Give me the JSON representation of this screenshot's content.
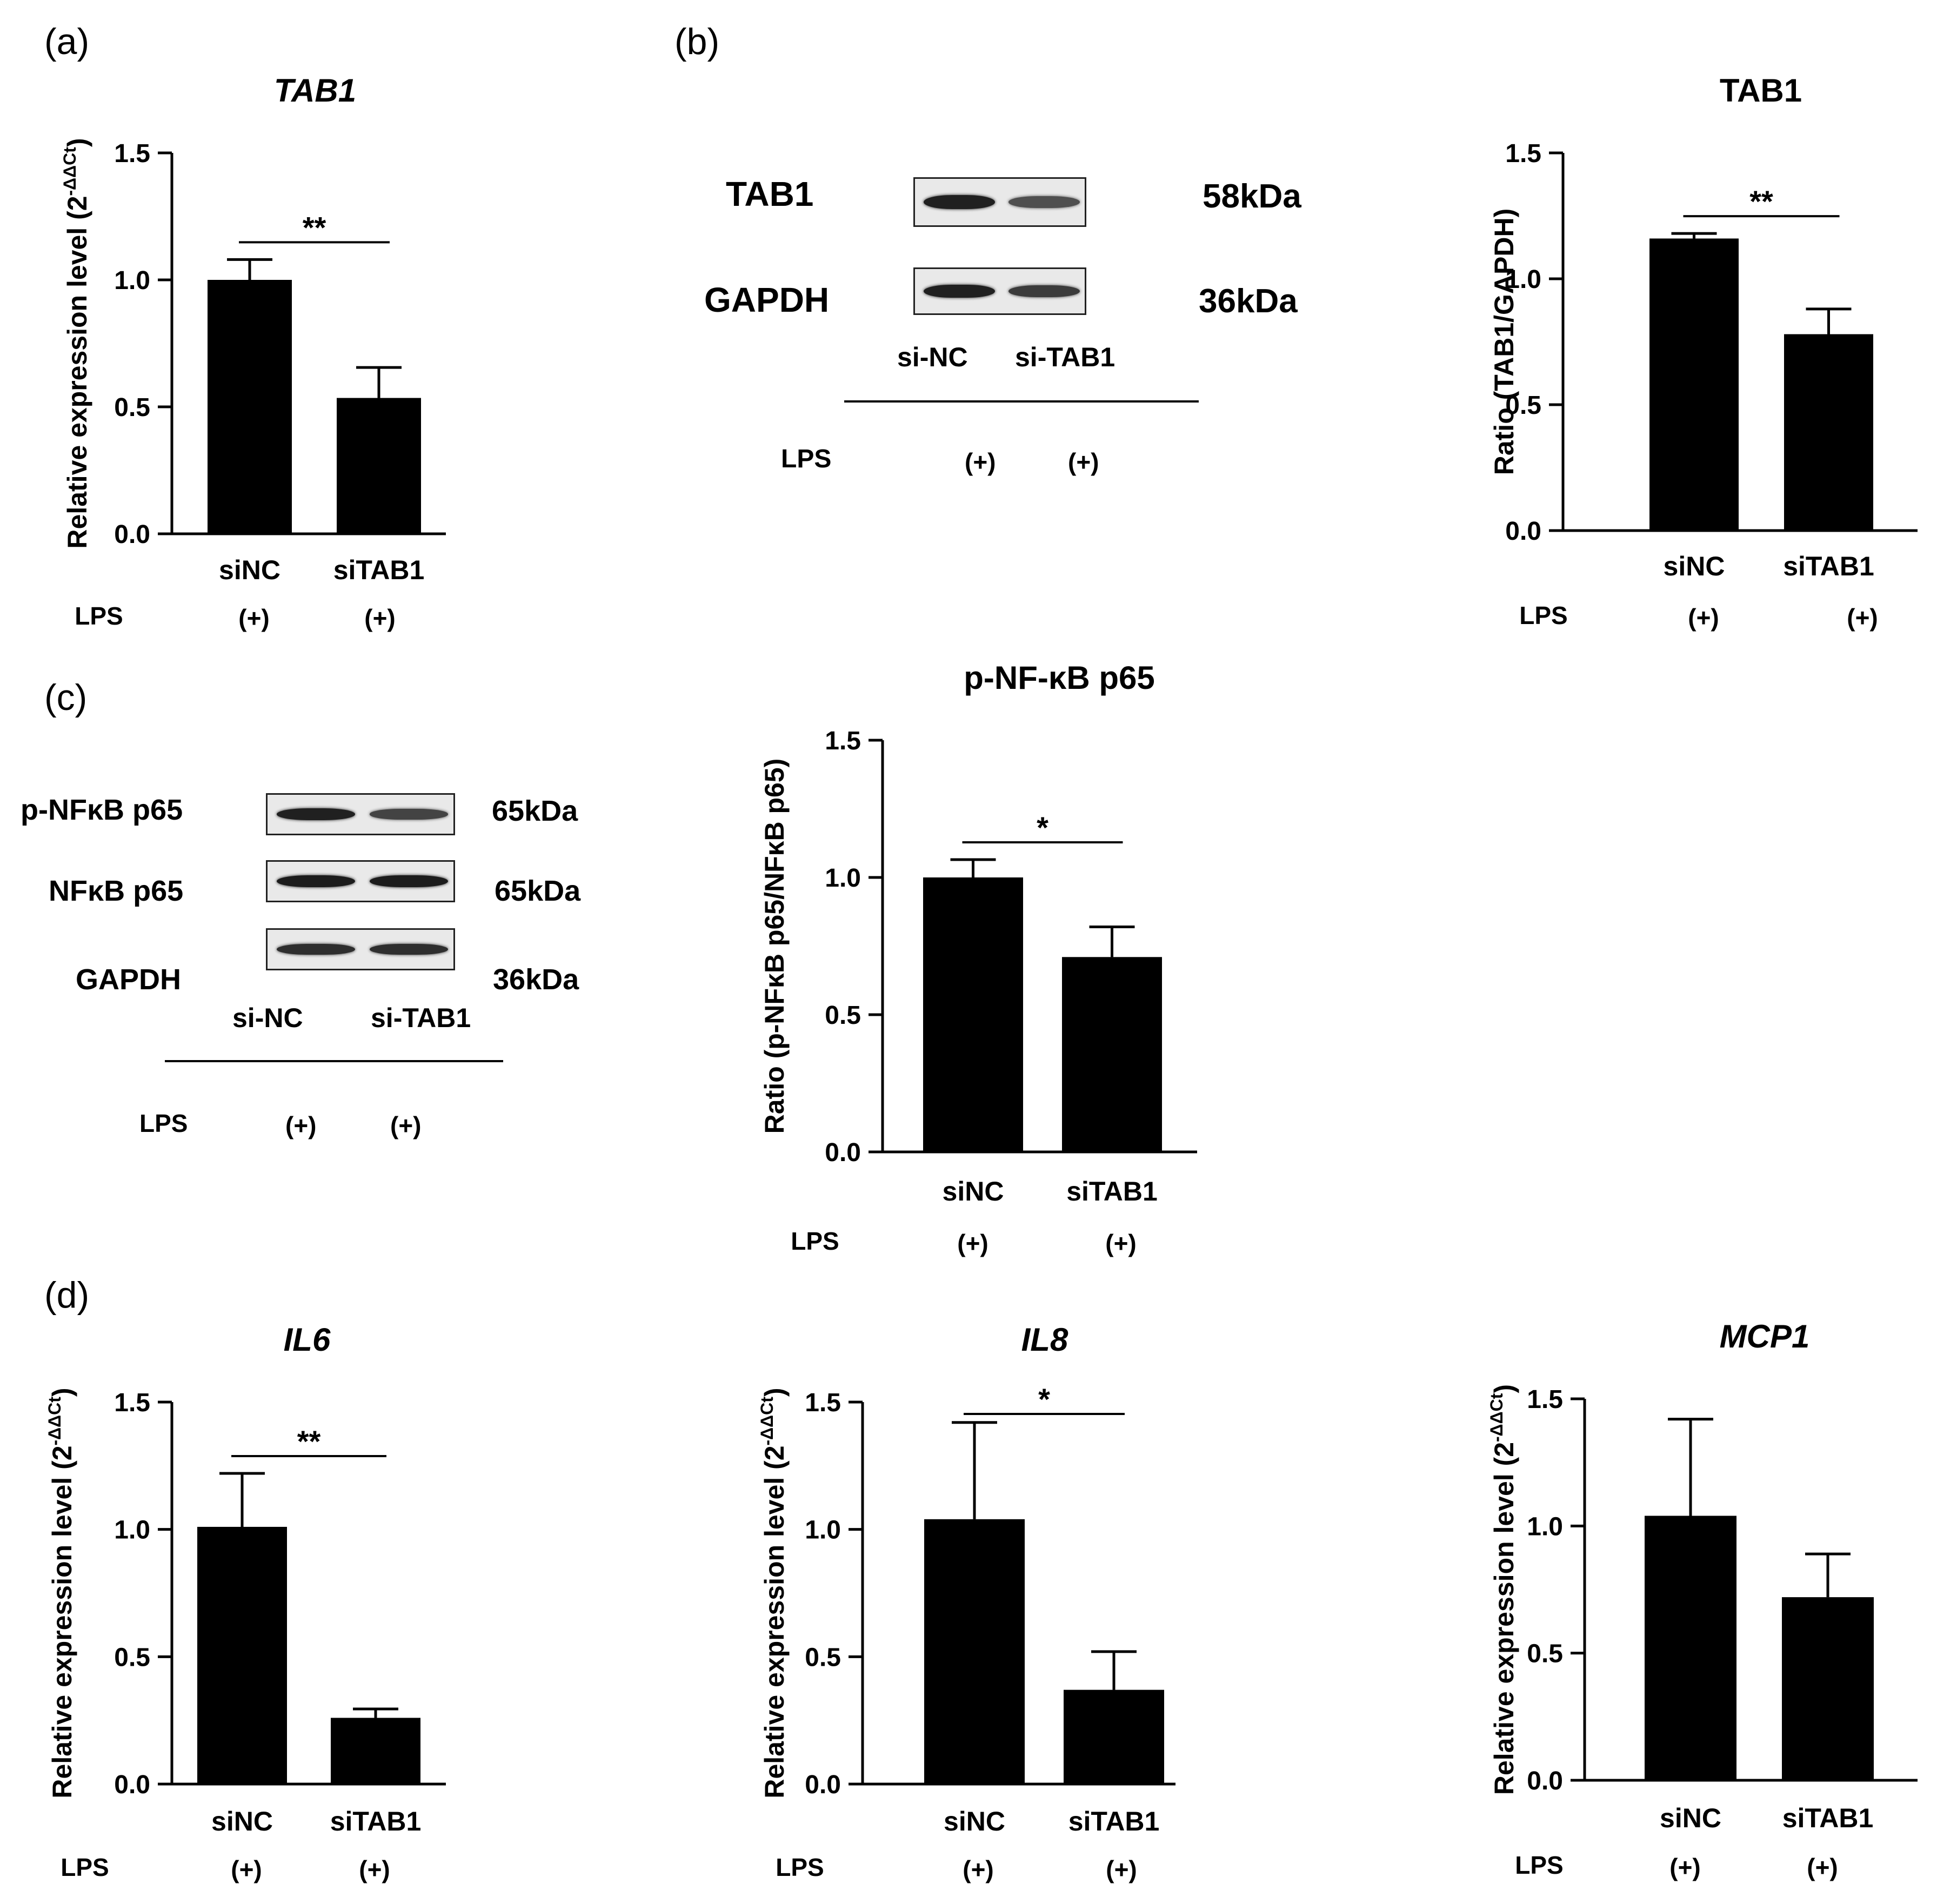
{
  "colors": {
    "bar": "#000000",
    "axis": "#000000",
    "background": "#ffffff",
    "blot_bg": "#e9e9e9",
    "band": "#1a1a1a"
  },
  "panels": {
    "a": {
      "letter": "(a)"
    },
    "b": {
      "letter": "(b)",
      "blot": {
        "rows": [
          {
            "protein": "TAB1",
            "size": "58kDa",
            "intensities": [
              0.95,
              0.6
            ]
          },
          {
            "protein": "GAPDH",
            "size": "36kDa",
            "intensities": [
              0.95,
              0.75
            ]
          }
        ],
        "lanes": [
          "si-NC",
          "si-TAB1"
        ],
        "treatment_label": "LPS",
        "treatment_values": [
          "(+)",
          "(+)"
        ]
      }
    },
    "c": {
      "letter": "(c)",
      "blot": {
        "rows": [
          {
            "protein": "p-NFκB p65",
            "size": "65kDa",
            "intensities": [
              0.95,
              0.7
            ]
          },
          {
            "protein": "NFκB p65",
            "size": "65kDa",
            "intensities": [
              0.98,
              0.98
            ]
          },
          {
            "protein": "GAPDH",
            "size": "36kDa",
            "intensities": [
              0.85,
              0.85
            ]
          }
        ],
        "lanes": [
          "si-NC",
          "si-TAB1"
        ],
        "treatment_label": "LPS",
        "treatment_values": [
          "(+)",
          "(+)"
        ]
      }
    },
    "d": {
      "letter": "(d)"
    }
  },
  "chart_data": [
    {
      "id": "a",
      "type": "bar",
      "title": "TAB1",
      "title_italic": true,
      "categories": [
        "siNC",
        "siTAB1"
      ],
      "values": [
        1.0,
        0.535
      ],
      "errors": [
        0.08,
        0.12
      ],
      "ylabel": "Relative expression level (2",
      "ylabel_sup": "-ΔΔCt",
      "ylabel_close": ")",
      "ylim": [
        0,
        1.5
      ],
      "yticks": [
        "0.0",
        "0.5",
        "1.0",
        "1.5"
      ],
      "significance": "**",
      "treatment_label": "LPS",
      "treatment_values": [
        "(+)",
        "(+)"
      ]
    },
    {
      "id": "b",
      "type": "bar",
      "title": "TAB1",
      "title_italic": false,
      "categories": [
        "siNC",
        "siTAB1"
      ],
      "values": [
        1.16,
        0.78
      ],
      "errors": [
        0.02,
        0.1
      ],
      "ylabel": "Ratio (TAB1/GAPDH)",
      "ylabel_sup": "",
      "ylabel_close": "",
      "ylim": [
        0,
        1.5
      ],
      "yticks": [
        "0.0",
        "0.5",
        "1.0",
        "1.5"
      ],
      "significance": "**",
      "treatment_label": "LPS",
      "treatment_values": [
        "(+)",
        "(+)"
      ]
    },
    {
      "id": "c",
      "type": "bar",
      "title": "p-NF-κB p65",
      "title_italic": false,
      "categories": [
        "siNC",
        "siTAB1"
      ],
      "values": [
        1.0,
        0.71
      ],
      "errors": [
        0.065,
        0.11
      ],
      "ylabel": "Ratio (p-NFκB p65/NFκB p65)",
      "ylabel_sup": "",
      "ylabel_close": "",
      "ylim": [
        0,
        1.5
      ],
      "yticks": [
        "0.0",
        "0.5",
        "1.0",
        "1.5"
      ],
      "significance": "*",
      "treatment_label": "LPS",
      "treatment_values": [
        "(+)",
        "(+)"
      ]
    },
    {
      "id": "d1",
      "type": "bar",
      "title": "IL6",
      "title_italic": true,
      "categories": [
        "siNC",
        "siTAB1"
      ],
      "values": [
        1.01,
        0.26
      ],
      "errors": [
        0.21,
        0.035
      ],
      "ylabel": "Relative expression level (2",
      "ylabel_sup": "-ΔΔCt",
      "ylabel_close": ")",
      "ylim": [
        0,
        1.5
      ],
      "yticks": [
        "0.0",
        "0.5",
        "1.0",
        "1.5"
      ],
      "significance": "**",
      "treatment_label": "LPS",
      "treatment_values": [
        "(+)",
        "(+)"
      ]
    },
    {
      "id": "d2",
      "type": "bar",
      "title": "IL8",
      "title_italic": true,
      "categories": [
        "siNC",
        "siTAB1"
      ],
      "values": [
        1.04,
        0.37
      ],
      "errors": [
        0.38,
        0.15
      ],
      "ylabel": "Relative expression level (2",
      "ylabel_sup": "-ΔΔCt",
      "ylabel_close": ")",
      "ylim": [
        0,
        1.5
      ],
      "yticks": [
        "0.0",
        "0.5",
        "1.0",
        "1.5"
      ],
      "significance": "*",
      "treatment_label": "LPS",
      "treatment_values": [
        "(+)",
        "(+)"
      ]
    },
    {
      "id": "d3",
      "type": "bar",
      "title": "MCP1",
      "title_italic": true,
      "categories": [
        "siNC",
        "siTAB1"
      ],
      "values": [
        1.04,
        0.72
      ],
      "errors": [
        0.38,
        0.17
      ],
      "ylabel": "Relative expression level (2",
      "ylabel_sup": "-ΔΔCt",
      "ylabel_close": ")",
      "ylim": [
        0,
        1.5
      ],
      "yticks": [
        "0.0",
        "0.5",
        "1.0",
        "1.5"
      ],
      "significance": "",
      "treatment_label": "LPS",
      "treatment_values": [
        "(+)",
        "(+)"
      ]
    }
  ]
}
